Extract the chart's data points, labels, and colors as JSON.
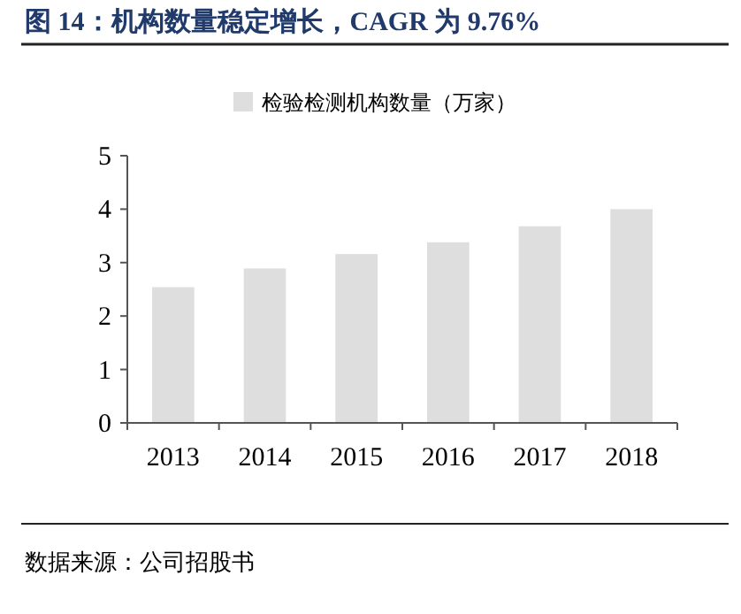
{
  "chart_data": {
    "type": "bar",
    "title": "图 14：机构数量稳定增长，CAGR 为 9.76%",
    "categories": [
      "2013",
      "2014",
      "2015",
      "2016",
      "2017",
      "2018"
    ],
    "series": [
      {
        "name": "检验检测机构数量（万家）",
        "color": "#dedede",
        "values": [
          2.54,
          2.89,
          3.16,
          3.38,
          3.68,
          4.0
        ]
      }
    ],
    "ylim": [
      0,
      5
    ],
    "yticks": [
      0,
      1,
      2,
      3,
      4,
      5
    ],
    "grid": false,
    "legend": "top",
    "annotations": [
      "数据来源：公司招股书"
    ]
  }
}
